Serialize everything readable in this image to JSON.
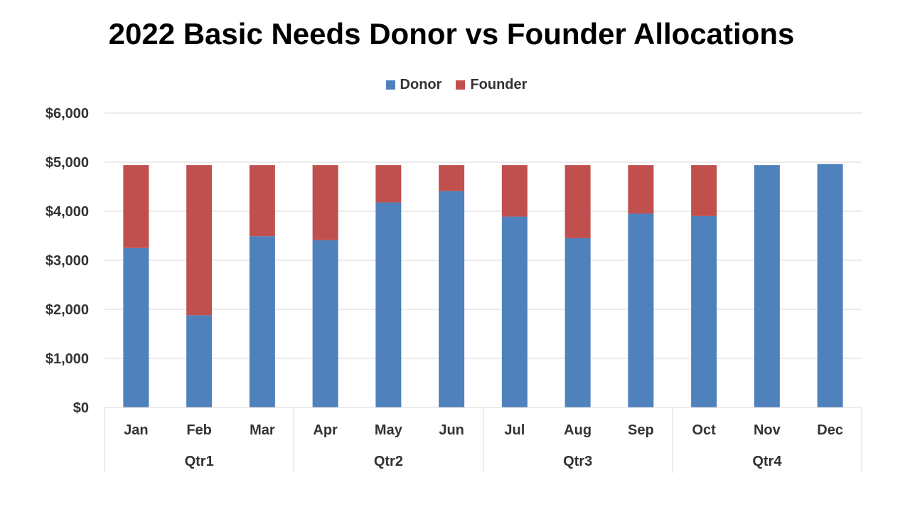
{
  "chart_data": {
    "type": "bar",
    "stacked": true,
    "title": "2022 Basic Needs Donor vs Founder Allocations",
    "xlabel": "",
    "ylabel": "",
    "categories": [
      "Jan",
      "Feb",
      "Mar",
      "Apr",
      "May",
      "Jun",
      "Jul",
      "Aug",
      "Sep",
      "Oct",
      "Nov",
      "Dec"
    ],
    "groups": [
      {
        "label": "Qtr1",
        "categories": [
          "Jan",
          "Feb",
          "Mar"
        ]
      },
      {
        "label": "Qtr2",
        "categories": [
          "Apr",
          "May",
          "Jun"
        ]
      },
      {
        "label": "Qtr3",
        "categories": [
          "Jul",
          "Aug",
          "Sep"
        ]
      },
      {
        "label": "Qtr4",
        "categories": [
          "Oct",
          "Nov",
          "Dec"
        ]
      }
    ],
    "series": [
      {
        "name": "Donor",
        "color": "#4f81bd",
        "values": [
          3250,
          1880,
          3490,
          3410,
          4180,
          4410,
          3890,
          3450,
          3950,
          3900,
          4940,
          4960
        ]
      },
      {
        "name": "Founder",
        "color": "#c0504d",
        "values": [
          1690,
          3060,
          1450,
          1530,
          760,
          530,
          1050,
          1490,
          990,
          1040,
          0,
          0
        ]
      }
    ],
    "ylim": [
      0,
      6000
    ],
    "yticks": [
      0,
      1000,
      2000,
      3000,
      4000,
      5000,
      6000
    ],
    "ytick_labels": [
      "$0",
      "$1,000",
      "$2,000",
      "$3,000",
      "$4,000",
      "$5,000",
      "$6,000"
    ],
    "grid": true,
    "legend_position": "top-center"
  }
}
